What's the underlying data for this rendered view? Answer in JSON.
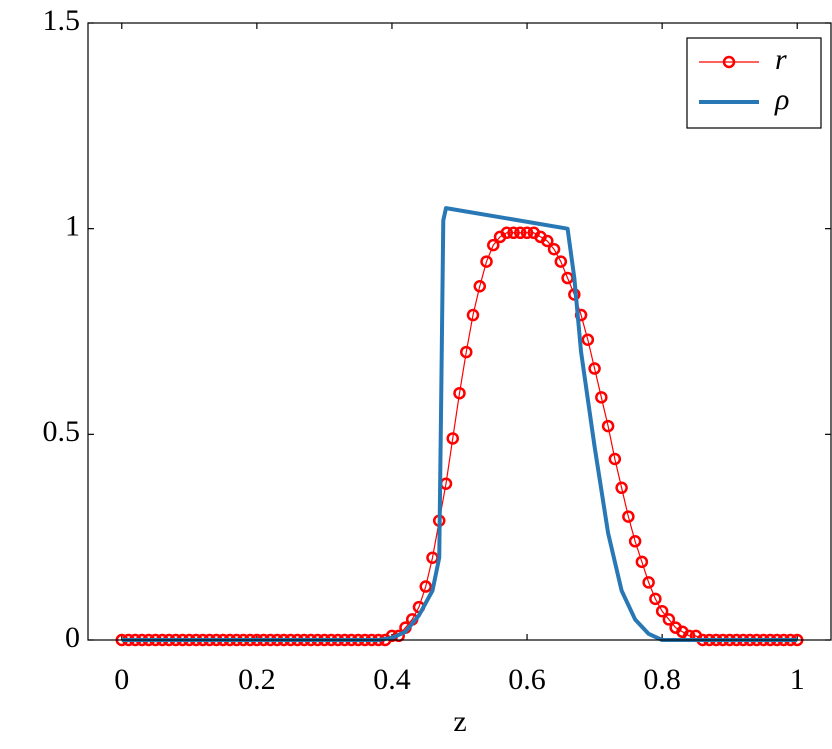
{
  "chart_data": {
    "type": "line",
    "xlabel": "z",
    "xlim": [
      -0.05,
      1.05
    ],
    "ylim": [
      0,
      1.5
    ],
    "xticks": [
      0,
      0.2,
      0.4,
      0.6,
      0.8,
      1
    ],
    "yticks": [
      0,
      0.5,
      1,
      1.5
    ],
    "legend": "upper right",
    "series": [
      {
        "name": "r",
        "color": "#ff0000",
        "marker": "circle",
        "x": [
          0,
          0.01,
          0.02,
          0.03,
          0.04,
          0.05,
          0.06,
          0.07,
          0.08,
          0.09,
          0.1,
          0.11,
          0.12,
          0.13,
          0.14,
          0.15,
          0.16,
          0.17,
          0.18,
          0.19,
          0.2,
          0.21,
          0.22,
          0.23,
          0.24,
          0.25,
          0.26,
          0.27,
          0.28,
          0.29,
          0.3,
          0.31,
          0.32,
          0.33,
          0.34,
          0.35,
          0.36,
          0.37,
          0.38,
          0.39,
          0.4,
          0.41,
          0.42,
          0.43,
          0.44,
          0.45,
          0.46,
          0.47,
          0.48,
          0.49,
          0.5,
          0.51,
          0.52,
          0.53,
          0.54,
          0.55,
          0.56,
          0.57,
          0.58,
          0.59,
          0.6,
          0.61,
          0.62,
          0.63,
          0.64,
          0.65,
          0.66,
          0.67,
          0.68,
          0.69,
          0.7,
          0.71,
          0.72,
          0.73,
          0.74,
          0.75,
          0.76,
          0.77,
          0.78,
          0.79,
          0.8,
          0.81,
          0.82,
          0.83,
          0.84,
          0.85,
          0.86,
          0.87,
          0.88,
          0.89,
          0.9,
          0.91,
          0.92,
          0.93,
          0.94,
          0.95,
          0.96,
          0.97,
          0.98,
          0.99,
          1
        ],
        "values": [
          0,
          0,
          0,
          0,
          0,
          0,
          0,
          0,
          0,
          0,
          0,
          0,
          0,
          0,
          0,
          0,
          0,
          0,
          0,
          0,
          0,
          0,
          0,
          0,
          0,
          0,
          0,
          0,
          0,
          0,
          0,
          0,
          0,
          0,
          0,
          0,
          0,
          0,
          0,
          0,
          0.01,
          0.01,
          0.03,
          0.05,
          0.08,
          0.13,
          0.2,
          0.29,
          0.38,
          0.49,
          0.6,
          0.7,
          0.79,
          0.86,
          0.92,
          0.96,
          0.98,
          0.99,
          0.99,
          0.99,
          0.99,
          0.99,
          0.98,
          0.97,
          0.95,
          0.92,
          0.88,
          0.84,
          0.79,
          0.73,
          0.66,
          0.59,
          0.52,
          0.44,
          0.37,
          0.3,
          0.24,
          0.19,
          0.14,
          0.1,
          0.07,
          0.05,
          0.03,
          0.02,
          0.01,
          0.01,
          0,
          0,
          0,
          0,
          0,
          0,
          0,
          0,
          0,
          0,
          0,
          0,
          0,
          0,
          0
        ]
      },
      {
        "name": "ρ",
        "color": "#2878b5",
        "x": [
          0,
          0.38,
          0.4,
          0.42,
          0.44,
          0.46,
          0.47,
          0.473,
          0.476,
          0.48,
          0.66,
          0.67,
          0.68,
          0.7,
          0.72,
          0.74,
          0.76,
          0.78,
          0.8,
          1
        ],
        "values": [
          0,
          0,
          0.005,
          0.02,
          0.06,
          0.12,
          0.2,
          0.6,
          1.02,
          1.05,
          1,
          0.88,
          0.7,
          0.47,
          0.26,
          0.12,
          0.05,
          0.015,
          0,
          0
        ]
      }
    ]
  }
}
